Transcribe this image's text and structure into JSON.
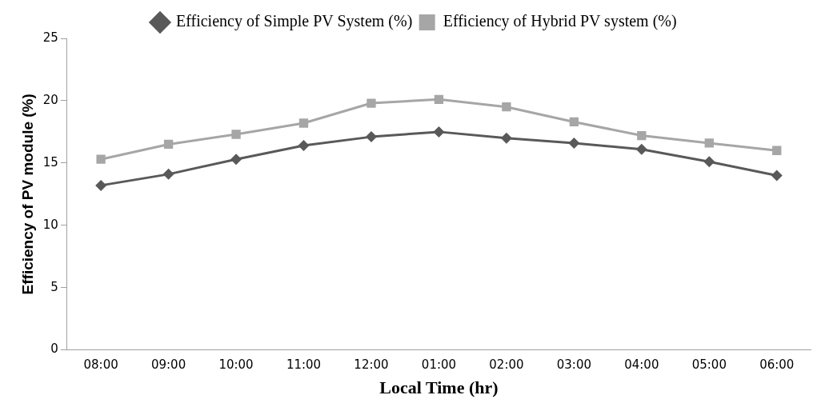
{
  "chart_data": {
    "type": "line",
    "xlabel": "Local Time (hr)",
    "ylabel": "Efficiency of PV module (%)",
    "categories": [
      "08:00",
      "09:00",
      "10:00",
      "11:00",
      "12:00",
      "01:00",
      "02:00",
      "03:00",
      "04:00",
      "05:00",
      "06:00"
    ],
    "series": [
      {
        "name": "Efficiency of Simple PV System (%)",
        "color": "#595959",
        "marker": "diamond",
        "values": [
          13.2,
          14.1,
          15.3,
          16.4,
          17.1,
          17.5,
          17.0,
          16.6,
          16.1,
          15.1,
          14.0
        ]
      },
      {
        "name": "Efficiency of Hybrid PV system (%)",
        "color": "#a6a6a6",
        "marker": "square",
        "values": [
          15.3,
          16.5,
          17.3,
          18.2,
          19.8,
          20.1,
          19.5,
          18.3,
          17.2,
          16.6,
          16.0
        ]
      }
    ],
    "ylim": [
      0,
      25
    ],
    "yticks": [
      0,
      5,
      10,
      15,
      20,
      25
    ],
    "grid": false,
    "legend": "top"
  }
}
